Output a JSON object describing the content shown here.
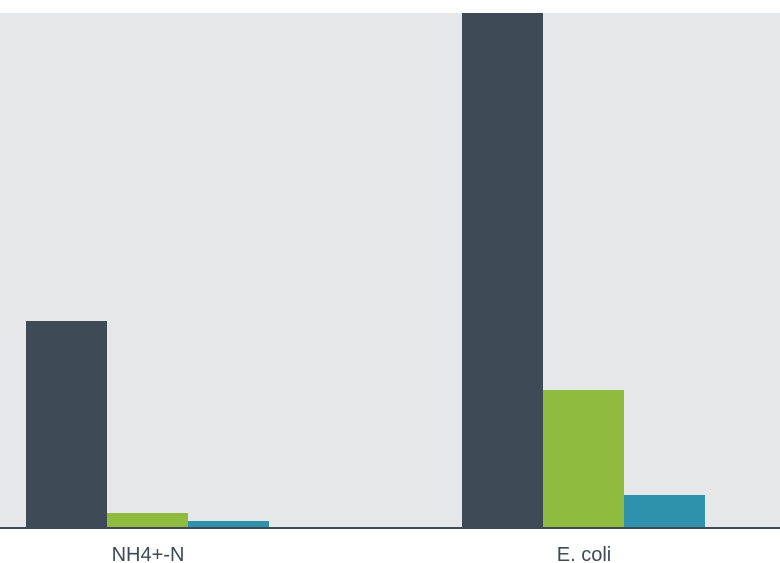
{
  "chart_data": {
    "type": "bar",
    "categories": [
      "NH4+-N",
      "E. coli"
    ],
    "series": [
      {
        "color": "#3e4b56",
        "values": [
          207,
          515
        ]
      },
      {
        "color": "#8fbc3f",
        "values": [
          15,
          138
        ]
      },
      {
        "color": "#2e92ad",
        "values": [
          7,
          33
        ]
      }
    ],
    "ylim": [
      0,
      515
    ],
    "grid": false,
    "legend": "none",
    "colors": {
      "plot_background": "#e6e7e9",
      "axis_line": "#3e4b56",
      "label_text": "#3e4b56"
    }
  }
}
